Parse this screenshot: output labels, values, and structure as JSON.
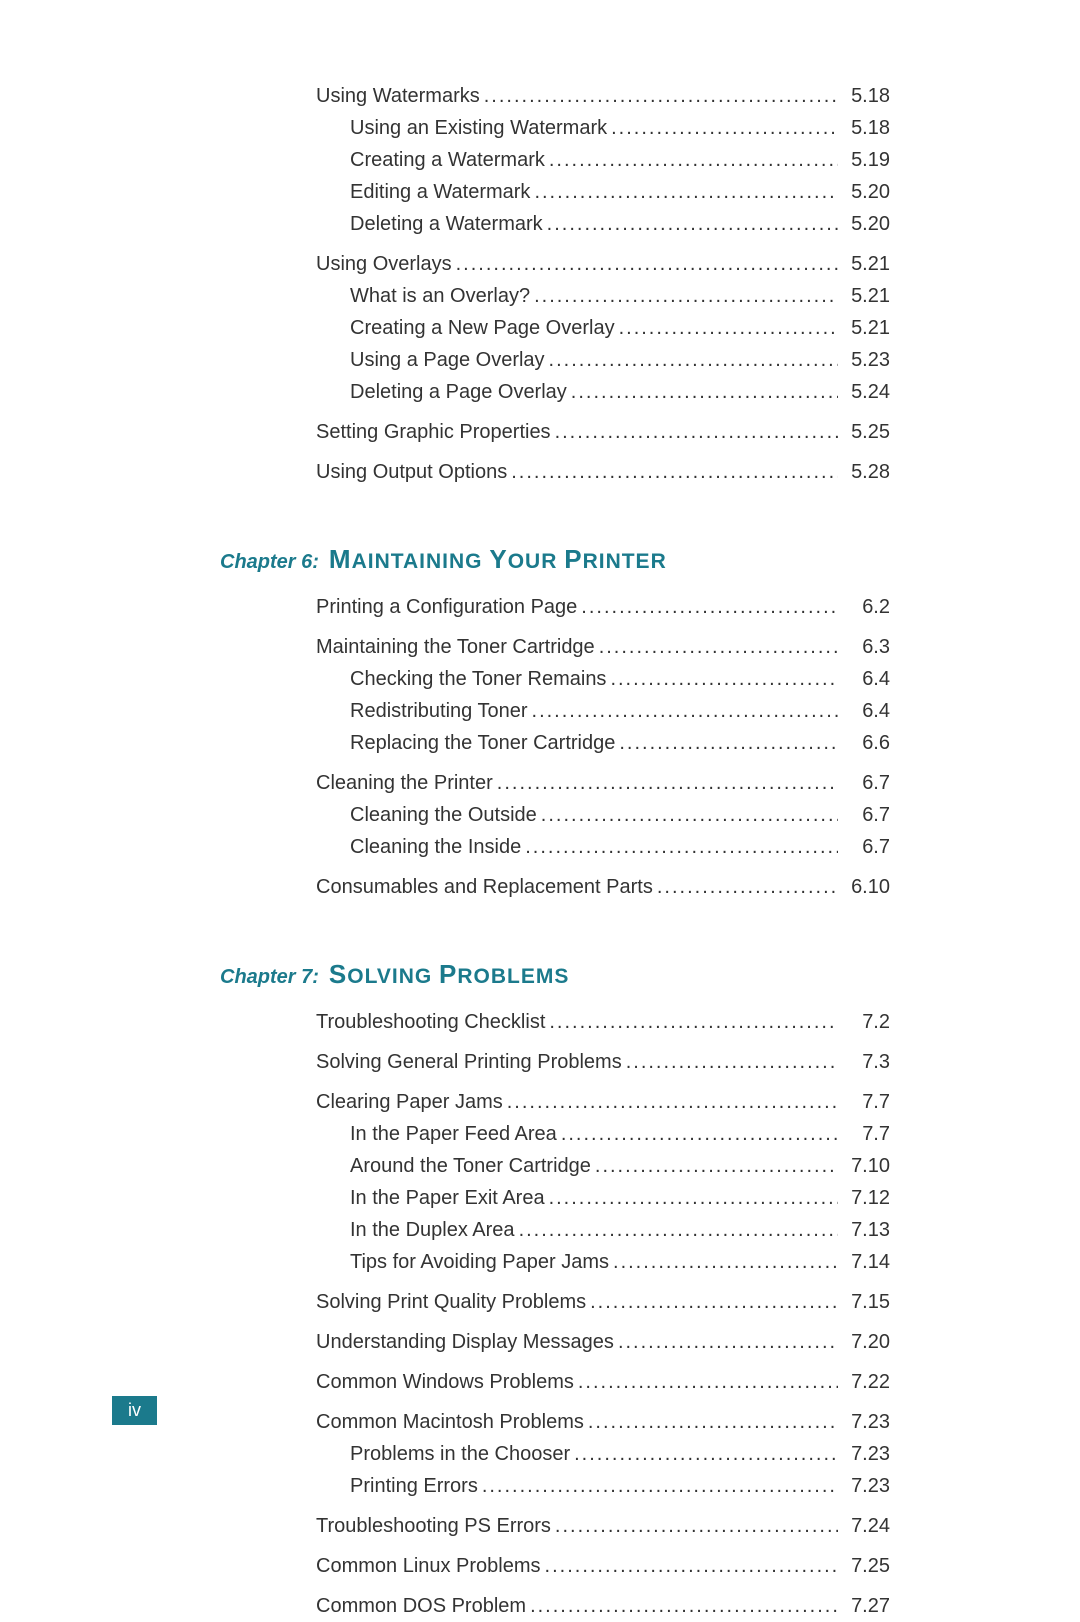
{
  "colors": {
    "accent": "#1b7a8c",
    "text": "#333333",
    "bg": "#ffffff"
  },
  "fonts": {
    "body": "Verdana",
    "toc_size_pt": 15,
    "chapter_prefix_pt": 15,
    "chapter_title_big_pt": 20,
    "chapter_title_small_pt": 16
  },
  "page_number": "iv",
  "sections": [
    {
      "heading": null,
      "blocks": [
        {
          "entries": [
            {
              "level": 1,
              "label": "Using Watermarks",
              "page": "5.18"
            },
            {
              "level": 2,
              "label": "Using an Existing Watermark",
              "page": "5.18"
            },
            {
              "level": 2,
              "label": "Creating a Watermark",
              "page": "5.19"
            },
            {
              "level": 2,
              "label": "Editing a Watermark",
              "page": "5.20"
            },
            {
              "level": 2,
              "label": "Deleting a Watermark",
              "page": "5.20"
            }
          ]
        },
        {
          "entries": [
            {
              "level": 1,
              "label": "Using Overlays",
              "page": "5.21"
            },
            {
              "level": 2,
              "label": "What is an Overlay?",
              "page": "5.21"
            },
            {
              "level": 2,
              "label": "Creating a New Page Overlay",
              "page": "5.21"
            },
            {
              "level": 2,
              "label": "Using a Page Overlay",
              "page": "5.23"
            },
            {
              "level": 2,
              "label": "Deleting a Page Overlay",
              "page": "5.24"
            }
          ]
        },
        {
          "entries": [
            {
              "level": 1,
              "label": "Setting Graphic Properties",
              "page": "5.25"
            }
          ]
        },
        {
          "entries": [
            {
              "level": 1,
              "label": "Using Output Options",
              "page": "5.28"
            }
          ]
        }
      ]
    },
    {
      "heading": {
        "prefix": "Chapter 6:",
        "title_parts": [
          {
            "t": "M",
            "c": "big"
          },
          {
            "t": "AINTAINING",
            "c": "small"
          },
          {
            "t": " ",
            "c": "small"
          },
          {
            "t": "Y",
            "c": "big"
          },
          {
            "t": "OUR",
            "c": "small"
          },
          {
            "t": " ",
            "c": "small"
          },
          {
            "t": "P",
            "c": "big"
          },
          {
            "t": "RINTER",
            "c": "small"
          }
        ]
      },
      "blocks": [
        {
          "entries": [
            {
              "level": 1,
              "label": "Printing a Configuration Page",
              "page": "6.2"
            }
          ]
        },
        {
          "entries": [
            {
              "level": 1,
              "label": "Maintaining the Toner Cartridge",
              "page": "6.3"
            },
            {
              "level": 2,
              "label": "Checking the Toner Remains",
              "page": "6.4"
            },
            {
              "level": 2,
              "label": "Redistributing Toner",
              "page": "6.4"
            },
            {
              "level": 2,
              "label": "Replacing the Toner Cartridge",
              "page": "6.6"
            }
          ]
        },
        {
          "entries": [
            {
              "level": 1,
              "label": "Cleaning the Printer",
              "page": "6.7"
            },
            {
              "level": 2,
              "label": "Cleaning the Outside",
              "page": "6.7"
            },
            {
              "level": 2,
              "label": "Cleaning the Inside",
              "page": "6.7"
            }
          ]
        },
        {
          "entries": [
            {
              "level": 1,
              "label": "Consumables and Replacement Parts",
              "page": "6.10"
            }
          ]
        }
      ]
    },
    {
      "heading": {
        "prefix": "Chapter 7:",
        "title_parts": [
          {
            "t": "S",
            "c": "big"
          },
          {
            "t": "OLVING",
            "c": "small"
          },
          {
            "t": " ",
            "c": "small"
          },
          {
            "t": "P",
            "c": "big"
          },
          {
            "t": "ROBLEMS",
            "c": "small"
          }
        ]
      },
      "blocks": [
        {
          "entries": [
            {
              "level": 1,
              "label": "Troubleshooting Checklist",
              "page": "7.2"
            }
          ]
        },
        {
          "entries": [
            {
              "level": 1,
              "label": "Solving General Printing Problems",
              "page": "7.3"
            }
          ]
        },
        {
          "entries": [
            {
              "level": 1,
              "label": "Clearing Paper Jams",
              "page": "7.7"
            },
            {
              "level": 2,
              "label": "In the Paper Feed Area",
              "page": "7.7"
            },
            {
              "level": 2,
              "label": "Around the Toner Cartridge",
              "page": "7.10"
            },
            {
              "level": 2,
              "label": "In the Paper Exit Area",
              "page": "7.12"
            },
            {
              "level": 2,
              "label": "In the Duplex Area",
              "page": "7.13"
            },
            {
              "level": 2,
              "label": "Tips for Avoiding Paper Jams",
              "page": "7.14"
            }
          ]
        },
        {
          "entries": [
            {
              "level": 1,
              "label": "Solving Print Quality Problems",
              "page": "7.15"
            }
          ]
        },
        {
          "entries": [
            {
              "level": 1,
              "label": "Understanding Display Messages",
              "page": "7.20"
            }
          ]
        },
        {
          "entries": [
            {
              "level": 1,
              "label": "Common Windows Problems",
              "page": "7.22"
            }
          ]
        },
        {
          "entries": [
            {
              "level": 1,
              "label": "Common Macintosh Problems",
              "page": "7.23"
            },
            {
              "level": 2,
              "label": "Problems in the Chooser",
              "page": "7.23"
            },
            {
              "level": 2,
              "label": "Printing Errors",
              "page": "7.23"
            }
          ]
        },
        {
          "entries": [
            {
              "level": 1,
              "label": "Troubleshooting PS Errors",
              "page": "7.24"
            }
          ]
        },
        {
          "entries": [
            {
              "level": 1,
              "label": "Common Linux Problems",
              "page": "7.25"
            }
          ]
        },
        {
          "entries": [
            {
              "level": 1,
              "label": "Common DOS Problem",
              "page": "7.27"
            }
          ]
        }
      ]
    }
  ]
}
